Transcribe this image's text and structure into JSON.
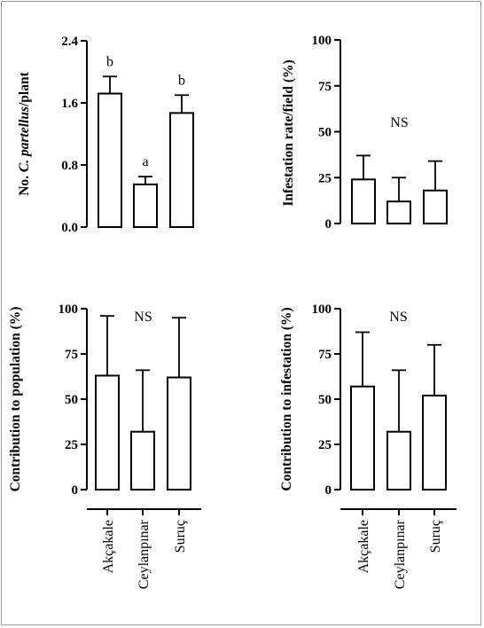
{
  "chart_data": [
    {
      "type": "bar",
      "ylabel_prefix": "No. ",
      "ylabel_italic": "C. partellus",
      "ylabel_suffix": "/plant",
      "categories": [
        "Akçakale",
        "Ceylanpınar",
        "Suruç"
      ],
      "values": [
        1.72,
        0.55,
        1.47
      ],
      "errors": [
        0.22,
        0.1,
        0.23
      ],
      "ylim": [
        0,
        2.4
      ],
      "yticks": [
        "0.0",
        "0.8",
        "1.6",
        "2.4"
      ],
      "letters": [
        "b",
        "a",
        "b"
      ],
      "annotation": ""
    },
    {
      "type": "bar",
      "ylabel": "Infestation rate/field (%)",
      "categories": [
        "Akçakale",
        "Ceylanpınar",
        "Suruç"
      ],
      "values": [
        24,
        12,
        18
      ],
      "errors": [
        13,
        13,
        16
      ],
      "ylim": [
        0,
        100
      ],
      "yticks": [
        "0",
        "25",
        "50",
        "75",
        "100"
      ],
      "letters": [
        "",
        "",
        ""
      ],
      "annotation": "NS"
    },
    {
      "type": "bar",
      "ylabel": "Contribution to population (%)",
      "categories": [
        "Akçakale",
        "Ceylanpınar",
        "Suruç"
      ],
      "values": [
        63,
        32,
        62
      ],
      "errors": [
        33,
        34,
        33
      ],
      "ylim": [
        0,
        100
      ],
      "yticks": [
        "0",
        "25",
        "50",
        "75",
        "100"
      ],
      "letters": [
        "",
        "",
        ""
      ],
      "annotation": "NS"
    },
    {
      "type": "bar",
      "ylabel": "Contribution to infestation (%)",
      "categories": [
        "Akçakale",
        "Ceylanpınar",
        "Suruç"
      ],
      "values": [
        57,
        32,
        52
      ],
      "errors": [
        30,
        34,
        28
      ],
      "ylim": [
        0,
        100
      ],
      "yticks": [
        "0",
        "25",
        "50",
        "75",
        "100"
      ],
      "letters": [
        "",
        "",
        ""
      ],
      "annotation": "NS"
    }
  ],
  "x_categories_bottom": [
    "Akçakale",
    "Ceylanpınar",
    "Suruç"
  ],
  "colors": {
    "bar_fill": "#ffffff",
    "stroke": "#000000",
    "frame": "#9a9a9a"
  }
}
